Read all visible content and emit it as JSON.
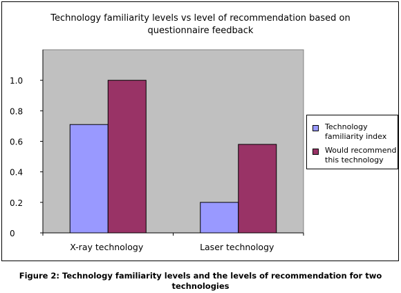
{
  "chart_data": {
    "type": "bar",
    "title": "Technology familiarity levels vs level of recommendation based on questionnaire feedback",
    "title_lines": [
      "Technology familiarity levels vs level of recommendation based on",
      "questionnaire feedback"
    ],
    "categories": [
      "X-ray technology",
      "Laser technology"
    ],
    "series": [
      {
        "name": "Technology familiarity index",
        "name_lines": [
          "Technology",
          "familiarity index"
        ],
        "color": "#9999ff",
        "values": [
          0.71,
          0.2
        ]
      },
      {
        "name": "Would recommend this technology",
        "name_lines": [
          "Would recommend",
          "this technology"
        ],
        "color": "#993366",
        "values": [
          1.0,
          0.58
        ]
      }
    ],
    "ylim": [
      0,
      1.2
    ],
    "yticks": [
      0,
      0.2,
      0.4,
      0.6,
      0.8,
      1.0
    ],
    "ytick_labels": [
      "0",
      "0.2",
      "0.4",
      "0.6",
      "0.8",
      "1.0"
    ],
    "xlabel": "",
    "ylabel": "",
    "plot_background": "#c0c0c0",
    "grid": false,
    "legend_position": "right"
  },
  "caption": {
    "line1": "Figure 2: Technology familiarity levels and the levels of recommendation for two",
    "line2": "technologies"
  }
}
